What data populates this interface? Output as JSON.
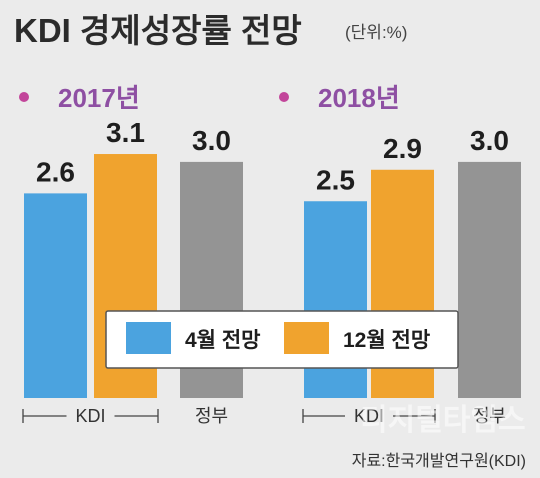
{
  "title": "KDI 경제성장률 전망",
  "unit": "(단위:%)",
  "source": "자료:한국개발연구원(KDI)",
  "watermark": "디지털타임스",
  "colors": {
    "april": "#4ba3df",
    "december": "#f0a32e",
    "government": "#949494",
    "year_dot": "#c2459a",
    "year_text": "#8e4fa3"
  },
  "chart_data": {
    "type": "bar",
    "title": "KDI 경제성장률 전망",
    "unit": "(단위:%)",
    "ylim": [
      0,
      3.1
    ],
    "grid": false,
    "legend_position": "bottom-center",
    "legend": [
      {
        "name": "4월 전망",
        "color": "#4ba3df"
      },
      {
        "name": "12월 전망",
        "color": "#f0a32e"
      }
    ],
    "groups": [
      {
        "year": "2017년",
        "kdi_label": "KDI",
        "gov_label": "정부",
        "bars": [
          {
            "series": "4월 전망",
            "value": 2.6,
            "label": "2.6",
            "color": "#4ba3df"
          },
          {
            "series": "12월 전망",
            "value": 3.1,
            "label": "3.1",
            "color": "#f0a32e"
          },
          {
            "series": "정부",
            "value": 3.0,
            "label": "3.0",
            "color": "#949494"
          }
        ]
      },
      {
        "year": "2018년",
        "kdi_label": "KDI",
        "gov_label": "정부",
        "bars": [
          {
            "series": "4월 전망",
            "value": 2.5,
            "label": "2.5",
            "color": "#4ba3df"
          },
          {
            "series": "12월 전망",
            "value": 2.9,
            "label": "2.9",
            "color": "#f0a32e"
          },
          {
            "series": "정부",
            "value": 3.0,
            "label": "3.0",
            "color": "#949494"
          }
        ]
      }
    ]
  }
}
